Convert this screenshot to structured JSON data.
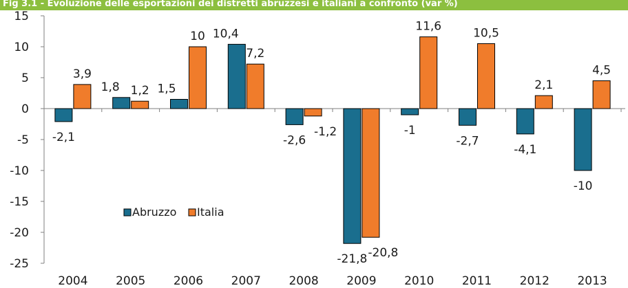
{
  "chart_data": {
    "type": "bar",
    "title": "Fig 3.1 - Evoluzione delle esportazioni dei distretti abruzzesi e italiani a confronto (var %)",
    "categories": [
      "2004",
      "2005",
      "2006",
      "2007",
      "2008",
      "2009",
      "2010",
      "2011",
      "2012",
      "2013"
    ],
    "series": [
      {
        "name": "Abruzzo",
        "color": "#1a6e8e",
        "values": [
          -2.1,
          1.8,
          1.5,
          10.4,
          -2.6,
          -21.8,
          -1,
          -2.7,
          -4.1,
          -10
        ],
        "labels": [
          "-2,1",
          "1,8",
          "1,5",
          "10,4",
          "-2,6",
          "-21,8",
          "-1",
          "-2,7",
          "-4,1",
          "-10"
        ]
      },
      {
        "name": "Italia",
        "color": "#f07c2b",
        "values": [
          3.9,
          1.2,
          10,
          7.2,
          -1.2,
          -20.8,
          11.6,
          10.5,
          2.1,
          4.5
        ],
        "labels": [
          "3,9",
          "1,2",
          "10",
          "7,2",
          "-1,2",
          "-20,8",
          "11,6",
          "10,5",
          "2,1",
          "4,5"
        ]
      }
    ],
    "ylim": [
      -25,
      15
    ],
    "yticks": [
      15,
      10,
      5,
      0,
      -5,
      -10,
      -15,
      -20,
      -25
    ],
    "xlabel": "",
    "ylabel": "",
    "grid": false,
    "legend": "lower-left inside plot"
  }
}
